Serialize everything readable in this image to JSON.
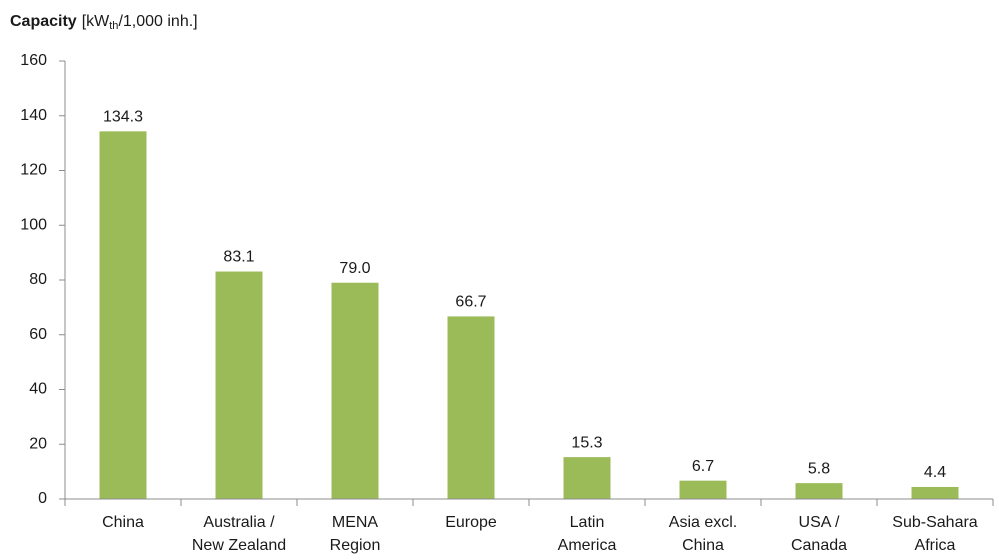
{
  "chart_data": {
    "type": "bar",
    "title": "Capacity",
    "unit_prefix": "[kW",
    "unit_subscript": "th",
    "unit_suffix": "/1,000 inh.]",
    "categories": [
      [
        "China"
      ],
      [
        "Australia /",
        "New Zealand"
      ],
      [
        "MENA",
        "Region"
      ],
      [
        "Europe"
      ],
      [
        "Latin",
        "America"
      ],
      [
        "Asia excl.",
        "China"
      ],
      [
        "USA /",
        "Canada"
      ],
      [
        "Sub-Sahara",
        "Africa"
      ]
    ],
    "values": [
      134.3,
      83.1,
      79.0,
      66.7,
      15.3,
      6.7,
      5.8,
      4.4
    ],
    "value_labels": [
      "134.3",
      "83.1",
      "79.0",
      "66.7",
      "15.3",
      "6.7",
      "5.8",
      "4.4"
    ],
    "color": "#9bbb59",
    "ylim": [
      0,
      160
    ],
    "yticks": [
      0,
      20,
      40,
      60,
      80,
      100,
      120,
      140,
      160
    ],
    "grid": false
  }
}
